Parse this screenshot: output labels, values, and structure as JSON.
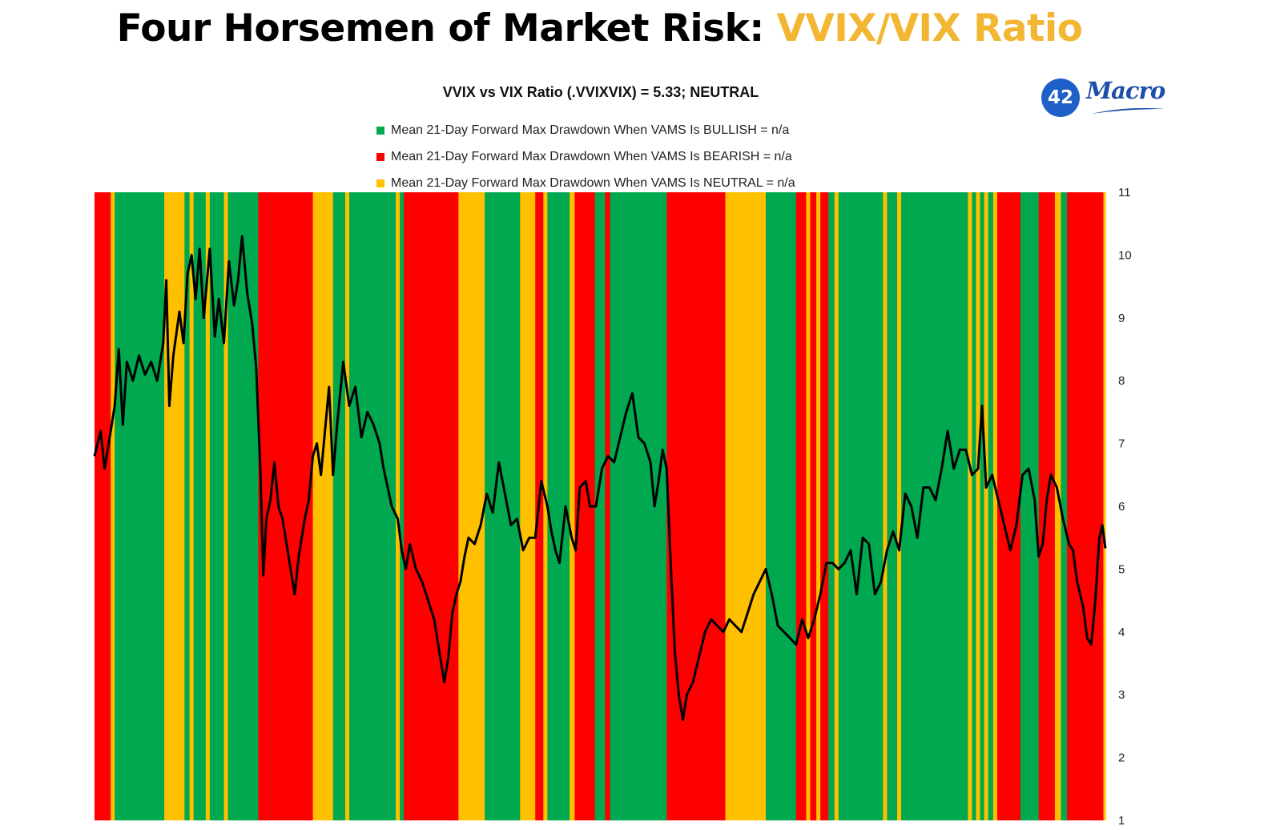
{
  "header": {
    "title_main": "Four Horsemen of Market Risk: ",
    "title_accent": "VVIX/VIX Ratio"
  },
  "logo": {
    "badge_text": "42",
    "wordmark": "Macro"
  },
  "colors": {
    "bullish": "#00A84F",
    "bearish": "#FF0000",
    "neutral": "#FFC000",
    "line": "#000000",
    "title_accent": "#F2B632",
    "logo_blue": "#1E5FC8"
  },
  "chart_data": {
    "type": "line",
    "title": "VVIX vs VIX Ratio (.VVIXVIX) = 5.33; NEUTRAL",
    "legend": [
      {
        "label": "Mean 21-Day Forward Max Drawdown When VAMS Is BULLISH = n/a",
        "regime": "bullish"
      },
      {
        "label": "Mean 21-Day Forward Max Drawdown When VAMS Is BEARISH = n/a",
        "regime": "bearish"
      },
      {
        "label": "Mean 21-Day Forward Max Drawdown When VAMS Is NEUTRAL = n/a",
        "regime": "neutral"
      }
    ],
    "legend_position": "top-center",
    "y_axis": {
      "side": "right",
      "min": 1,
      "max": 11,
      "ticks": [
        1,
        2,
        3,
        4,
        5,
        6,
        7,
        8,
        9,
        10,
        11
      ]
    },
    "x_range": [
      0,
      100
    ],
    "grid": false,
    "regimes": [
      {
        "start": 0,
        "end": 1.6,
        "regime": "bearish"
      },
      {
        "start": 1.6,
        "end": 2.0,
        "regime": "neutral"
      },
      {
        "start": 2.0,
        "end": 6.9,
        "regime": "bullish"
      },
      {
        "start": 6.9,
        "end": 8.9,
        "regime": "neutral"
      },
      {
        "start": 8.9,
        "end": 9.4,
        "regime": "bullish"
      },
      {
        "start": 9.4,
        "end": 9.8,
        "regime": "neutral"
      },
      {
        "start": 9.8,
        "end": 11.0,
        "regime": "bullish"
      },
      {
        "start": 11.0,
        "end": 11.4,
        "regime": "neutral"
      },
      {
        "start": 11.4,
        "end": 12.8,
        "regime": "bullish"
      },
      {
        "start": 12.8,
        "end": 13.2,
        "regime": "neutral"
      },
      {
        "start": 13.2,
        "end": 16.2,
        "regime": "bullish"
      },
      {
        "start": 16.2,
        "end": 21.6,
        "regime": "bearish"
      },
      {
        "start": 21.6,
        "end": 23.6,
        "regime": "neutral"
      },
      {
        "start": 23.6,
        "end": 24.8,
        "regime": "bullish"
      },
      {
        "start": 24.8,
        "end": 25.2,
        "regime": "neutral"
      },
      {
        "start": 25.2,
        "end": 29.8,
        "regime": "bullish"
      },
      {
        "start": 29.8,
        "end": 30.2,
        "regime": "neutral"
      },
      {
        "start": 30.2,
        "end": 30.6,
        "regime": "bullish"
      },
      {
        "start": 30.6,
        "end": 36.0,
        "regime": "bearish"
      },
      {
        "start": 36.0,
        "end": 38.6,
        "regime": "neutral"
      },
      {
        "start": 38.6,
        "end": 42.1,
        "regime": "bullish"
      },
      {
        "start": 42.1,
        "end": 43.6,
        "regime": "neutral"
      },
      {
        "start": 43.6,
        "end": 44.4,
        "regime": "bearish"
      },
      {
        "start": 44.4,
        "end": 44.8,
        "regime": "neutral"
      },
      {
        "start": 44.8,
        "end": 47.0,
        "regime": "bullish"
      },
      {
        "start": 47.0,
        "end": 47.5,
        "regime": "neutral"
      },
      {
        "start": 47.5,
        "end": 49.5,
        "regime": "bearish"
      },
      {
        "start": 49.5,
        "end": 50.5,
        "regime": "bullish"
      },
      {
        "start": 50.5,
        "end": 51.0,
        "regime": "bearish"
      },
      {
        "start": 51.0,
        "end": 56.6,
        "regime": "bullish"
      },
      {
        "start": 56.6,
        "end": 62.4,
        "regime": "bearish"
      },
      {
        "start": 62.4,
        "end": 66.4,
        "regime": "neutral"
      },
      {
        "start": 66.4,
        "end": 69.4,
        "regime": "bullish"
      },
      {
        "start": 69.4,
        "end": 70.4,
        "regime": "bearish"
      },
      {
        "start": 70.4,
        "end": 70.8,
        "regime": "neutral"
      },
      {
        "start": 70.8,
        "end": 71.4,
        "regime": "bearish"
      },
      {
        "start": 71.4,
        "end": 71.8,
        "regime": "neutral"
      },
      {
        "start": 71.8,
        "end": 72.6,
        "regime": "bearish"
      },
      {
        "start": 72.6,
        "end": 73.2,
        "regime": "bullish"
      },
      {
        "start": 73.2,
        "end": 73.6,
        "regime": "neutral"
      },
      {
        "start": 73.6,
        "end": 78.0,
        "regime": "bullish"
      },
      {
        "start": 78.0,
        "end": 78.4,
        "regime": "neutral"
      },
      {
        "start": 78.4,
        "end": 79.4,
        "regime": "bullish"
      },
      {
        "start": 79.4,
        "end": 79.8,
        "regime": "neutral"
      },
      {
        "start": 79.8,
        "end": 86.4,
        "regime": "bullish"
      },
      {
        "start": 86.4,
        "end": 86.8,
        "regime": "neutral"
      },
      {
        "start": 86.8,
        "end": 87.2,
        "regime": "bullish"
      },
      {
        "start": 87.2,
        "end": 87.6,
        "regime": "neutral"
      },
      {
        "start": 87.6,
        "end": 88.0,
        "regime": "bullish"
      },
      {
        "start": 88.0,
        "end": 88.4,
        "regime": "neutral"
      },
      {
        "start": 88.4,
        "end": 88.9,
        "regime": "bullish"
      },
      {
        "start": 88.9,
        "end": 89.3,
        "regime": "neutral"
      },
      {
        "start": 89.3,
        "end": 91.6,
        "regime": "bearish"
      },
      {
        "start": 91.6,
        "end": 93.4,
        "regime": "bullish"
      },
      {
        "start": 93.4,
        "end": 95.0,
        "regime": "bearish"
      },
      {
        "start": 95.0,
        "end": 95.6,
        "regime": "neutral"
      },
      {
        "start": 95.6,
        "end": 96.2,
        "regime": "bullish"
      },
      {
        "start": 96.2,
        "end": 99.8,
        "regime": "bearish"
      },
      {
        "start": 99.8,
        "end": 100.0,
        "regime": "neutral"
      }
    ],
    "series": [
      {
        "values": [
          [
            0,
            6.8
          ],
          [
            0.6,
            7.2
          ],
          [
            1.0,
            6.6
          ],
          [
            1.4,
            7.0
          ],
          [
            2.0,
            7.6
          ],
          [
            2.4,
            8.5
          ],
          [
            2.8,
            7.3
          ],
          [
            3.2,
            8.3
          ],
          [
            3.8,
            8.0
          ],
          [
            4.4,
            8.4
          ],
          [
            5.0,
            8.1
          ],
          [
            5.6,
            8.3
          ],
          [
            6.2,
            8.0
          ],
          [
            6.8,
            8.6
          ],
          [
            7.1,
            9.6
          ],
          [
            7.4,
            7.6
          ],
          [
            7.8,
            8.4
          ],
          [
            8.4,
            9.1
          ],
          [
            8.8,
            8.6
          ],
          [
            9.2,
            9.7
          ],
          [
            9.6,
            10.0
          ],
          [
            10.0,
            9.3
          ],
          [
            10.4,
            10.1
          ],
          [
            10.8,
            9.0
          ],
          [
            11.4,
            10.1
          ],
          [
            11.9,
            8.7
          ],
          [
            12.3,
            9.3
          ],
          [
            12.8,
            8.6
          ],
          [
            13.3,
            9.9
          ],
          [
            13.8,
            9.2
          ],
          [
            14.2,
            9.6
          ],
          [
            14.6,
            10.3
          ],
          [
            15.1,
            9.4
          ],
          [
            15.6,
            8.9
          ],
          [
            16.0,
            8.2
          ],
          [
            16.4,
            6.6
          ],
          [
            16.7,
            4.9
          ],
          [
            17.0,
            5.8
          ],
          [
            17.4,
            6.1
          ],
          [
            17.8,
            6.7
          ],
          [
            18.2,
            6.0
          ],
          [
            18.6,
            5.8
          ],
          [
            19.0,
            5.4
          ],
          [
            19.4,
            5.0
          ],
          [
            19.8,
            4.6
          ],
          [
            20.2,
            5.2
          ],
          [
            20.8,
            5.8
          ],
          [
            21.2,
            6.1
          ],
          [
            21.6,
            6.8
          ],
          [
            22.0,
            7.0
          ],
          [
            22.4,
            6.5
          ],
          [
            22.8,
            7.2
          ],
          [
            23.2,
            7.9
          ],
          [
            23.6,
            6.5
          ],
          [
            24.0,
            7.3
          ],
          [
            24.6,
            8.3
          ],
          [
            25.2,
            7.6
          ],
          [
            25.8,
            7.9
          ],
          [
            26.4,
            7.1
          ],
          [
            27.0,
            7.5
          ],
          [
            27.6,
            7.3
          ],
          [
            28.2,
            7.0
          ],
          [
            28.6,
            6.6
          ],
          [
            29.0,
            6.3
          ],
          [
            29.4,
            6.0
          ],
          [
            30.0,
            5.8
          ],
          [
            30.4,
            5.3
          ],
          [
            30.8,
            5.0
          ],
          [
            31.2,
            5.4
          ],
          [
            31.8,
            5.0
          ],
          [
            32.4,
            4.8
          ],
          [
            33.0,
            4.5
          ],
          [
            33.6,
            4.2
          ],
          [
            34.2,
            3.6
          ],
          [
            34.6,
            3.2
          ],
          [
            35.0,
            3.6
          ],
          [
            35.4,
            4.3
          ],
          [
            35.8,
            4.6
          ],
          [
            36.2,
            4.8
          ],
          [
            36.6,
            5.2
          ],
          [
            37.0,
            5.5
          ],
          [
            37.6,
            5.4
          ],
          [
            38.2,
            5.7
          ],
          [
            38.8,
            6.2
          ],
          [
            39.4,
            5.9
          ],
          [
            40.0,
            6.7
          ],
          [
            40.6,
            6.2
          ],
          [
            41.2,
            5.7
          ],
          [
            41.8,
            5.8
          ],
          [
            42.4,
            5.3
          ],
          [
            43.0,
            5.5
          ],
          [
            43.6,
            5.5
          ],
          [
            44.2,
            6.4
          ],
          [
            44.8,
            6.0
          ],
          [
            45.2,
            5.6
          ],
          [
            45.6,
            5.3
          ],
          [
            46.0,
            5.1
          ],
          [
            46.6,
            6.0
          ],
          [
            47.2,
            5.5
          ],
          [
            47.6,
            5.3
          ],
          [
            48.0,
            6.3
          ],
          [
            48.6,
            6.4
          ],
          [
            49.0,
            6.0
          ],
          [
            49.6,
            6.0
          ],
          [
            50.2,
            6.6
          ],
          [
            50.8,
            6.8
          ],
          [
            51.4,
            6.7
          ],
          [
            52.0,
            7.1
          ],
          [
            52.6,
            7.5
          ],
          [
            53.2,
            7.8
          ],
          [
            53.8,
            7.1
          ],
          [
            54.4,
            7.0
          ],
          [
            55.0,
            6.7
          ],
          [
            55.4,
            6.0
          ],
          [
            55.8,
            6.4
          ],
          [
            56.2,
            6.9
          ],
          [
            56.6,
            6.6
          ],
          [
            57.0,
            5.1
          ],
          [
            57.4,
            3.7
          ],
          [
            57.8,
            3.0
          ],
          [
            58.2,
            2.6
          ],
          [
            58.6,
            3.0
          ],
          [
            59.2,
            3.2
          ],
          [
            59.8,
            3.6
          ],
          [
            60.4,
            4.0
          ],
          [
            61.0,
            4.2
          ],
          [
            61.6,
            4.1
          ],
          [
            62.2,
            4.0
          ],
          [
            62.8,
            4.2
          ],
          [
            63.4,
            4.1
          ],
          [
            64.0,
            4.0
          ],
          [
            64.6,
            4.3
          ],
          [
            65.2,
            4.6
          ],
          [
            65.8,
            4.8
          ],
          [
            66.4,
            5.0
          ],
          [
            67.0,
            4.6
          ],
          [
            67.6,
            4.1
          ],
          [
            68.2,
            4.0
          ],
          [
            68.8,
            3.9
          ],
          [
            69.4,
            3.8
          ],
          [
            70.0,
            4.2
          ],
          [
            70.6,
            3.9
          ],
          [
            71.2,
            4.2
          ],
          [
            71.8,
            4.6
          ],
          [
            72.4,
            5.1
          ],
          [
            73.0,
            5.1
          ],
          [
            73.6,
            5.0
          ],
          [
            74.2,
            5.1
          ],
          [
            74.8,
            5.3
          ],
          [
            75.4,
            4.6
          ],
          [
            76.0,
            5.5
          ],
          [
            76.6,
            5.4
          ],
          [
            77.2,
            4.6
          ],
          [
            77.8,
            4.8
          ],
          [
            78.4,
            5.3
          ],
          [
            79.0,
            5.6
          ],
          [
            79.6,
            5.3
          ],
          [
            80.2,
            6.2
          ],
          [
            80.8,
            6.0
          ],
          [
            81.4,
            5.5
          ],
          [
            82.0,
            6.3
          ],
          [
            82.6,
            6.3
          ],
          [
            83.2,
            6.1
          ],
          [
            83.8,
            6.6
          ],
          [
            84.4,
            7.2
          ],
          [
            85.0,
            6.6
          ],
          [
            85.6,
            6.9
          ],
          [
            86.2,
            6.9
          ],
          [
            86.8,
            6.5
          ],
          [
            87.4,
            6.6
          ],
          [
            87.8,
            7.6
          ],
          [
            88.2,
            6.3
          ],
          [
            88.8,
            6.5
          ],
          [
            89.4,
            6.1
          ],
          [
            90.0,
            5.7
          ],
          [
            90.6,
            5.3
          ],
          [
            91.2,
            5.7
          ],
          [
            91.8,
            6.5
          ],
          [
            92.4,
            6.6
          ],
          [
            93.0,
            6.1
          ],
          [
            93.4,
            5.2
          ],
          [
            93.8,
            5.4
          ],
          [
            94.2,
            6.1
          ],
          [
            94.6,
            6.5
          ],
          [
            95.2,
            6.3
          ],
          [
            95.8,
            5.8
          ],
          [
            96.4,
            5.4
          ],
          [
            96.8,
            5.3
          ],
          [
            97.2,
            4.8
          ],
          [
            97.8,
            4.4
          ],
          [
            98.2,
            3.9
          ],
          [
            98.6,
            3.8
          ],
          [
            99.0,
            4.5
          ],
          [
            99.4,
            5.5
          ],
          [
            99.7,
            5.7
          ],
          [
            100,
            5.33
          ]
        ]
      }
    ]
  }
}
